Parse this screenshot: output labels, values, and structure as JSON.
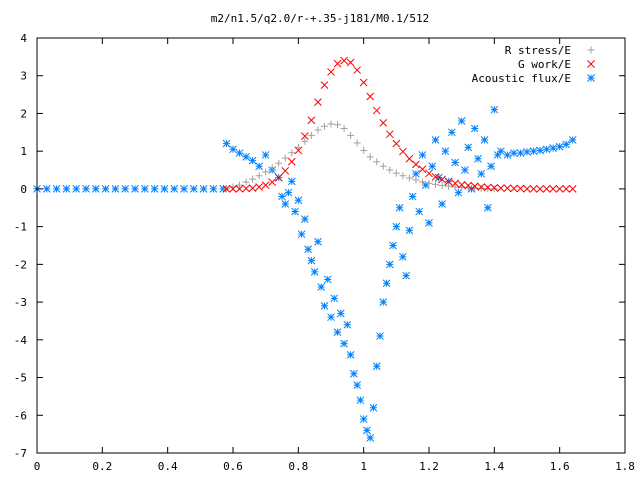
{
  "chart_data": {
    "type": "scatter",
    "title": "m2/n1.5/q2.0/r-+.35-j181/M0.1/512",
    "xlabel": "",
    "ylabel": "",
    "xlim": [
      0,
      1.8
    ],
    "ylim": [
      -7,
      4
    ],
    "x_ticks": [
      0,
      0.2,
      0.4,
      0.6,
      0.8,
      1,
      1.2,
      1.4,
      1.6,
      1.8
    ],
    "x_tick_labels": [
      "0",
      "0.2",
      "0.4",
      "0.6",
      "0.8",
      "1",
      "1.2",
      "1.4",
      "1.6",
      "1.8"
    ],
    "y_ticks": [
      4,
      3,
      2,
      1,
      0,
      -1,
      -2,
      -3,
      -4,
      -5,
      -6,
      -7
    ],
    "y_tick_labels": [
      "4",
      "3",
      "2",
      "1",
      "0",
      "-1",
      "-2",
      "-3",
      "-4",
      "-5",
      "-6",
      "-7"
    ],
    "grid": false,
    "legend_position": "top-right",
    "series": [
      {
        "name": "R stress/E",
        "marker": "plus",
        "color": "#a0a0a0",
        "points": [
          [
            0.58,
            0.0
          ],
          [
            0.6,
            0.05
          ],
          [
            0.62,
            0.1
          ],
          [
            0.64,
            0.18
          ],
          [
            0.66,
            0.26
          ],
          [
            0.68,
            0.35
          ],
          [
            0.7,
            0.45
          ],
          [
            0.72,
            0.56
          ],
          [
            0.74,
            0.68
          ],
          [
            0.76,
            0.82
          ],
          [
            0.78,
            0.96
          ],
          [
            0.8,
            1.1
          ],
          [
            0.82,
            1.26
          ],
          [
            0.84,
            1.42
          ],
          [
            0.86,
            1.56
          ],
          [
            0.88,
            1.66
          ],
          [
            0.9,
            1.72
          ],
          [
            0.92,
            1.7
          ],
          [
            0.94,
            1.6
          ],
          [
            0.96,
            1.42
          ],
          [
            0.98,
            1.22
          ],
          [
            1.0,
            1.02
          ],
          [
            1.02,
            0.85
          ],
          [
            1.04,
            0.72
          ],
          [
            1.06,
            0.6
          ],
          [
            1.08,
            0.5
          ],
          [
            1.1,
            0.42
          ],
          [
            1.12,
            0.35
          ],
          [
            1.14,
            0.29
          ],
          [
            1.16,
            0.24
          ],
          [
            1.18,
            0.19
          ],
          [
            1.2,
            0.15
          ],
          [
            1.22,
            0.12
          ],
          [
            1.24,
            0.09
          ],
          [
            1.26,
            0.07
          ],
          [
            1.28,
            0.05
          ],
          [
            1.3,
            0.04
          ],
          [
            1.32,
            0.03
          ],
          [
            1.34,
            0.02
          ],
          [
            1.36,
            0.01
          ],
          [
            1.38,
            0.0
          ],
          [
            1.4,
            0.0
          ]
        ]
      },
      {
        "name": "G work/E",
        "marker": "cross",
        "color": "#ff0000",
        "points": [
          [
            0.58,
            0.0
          ],
          [
            0.6,
            0.0
          ],
          [
            0.62,
            0.0
          ],
          [
            0.64,
            0.01
          ],
          [
            0.66,
            0.02
          ],
          [
            0.68,
            0.05
          ],
          [
            0.7,
            0.1
          ],
          [
            0.72,
            0.18
          ],
          [
            0.74,
            0.3
          ],
          [
            0.76,
            0.48
          ],
          [
            0.78,
            0.72
          ],
          [
            0.8,
            1.02
          ],
          [
            0.82,
            1.4
          ],
          [
            0.84,
            1.82
          ],
          [
            0.86,
            2.3
          ],
          [
            0.88,
            2.75
          ],
          [
            0.9,
            3.1
          ],
          [
            0.92,
            3.32
          ],
          [
            0.94,
            3.4
          ],
          [
            0.96,
            3.35
          ],
          [
            0.98,
            3.15
          ],
          [
            1.0,
            2.82
          ],
          [
            1.02,
            2.45
          ],
          [
            1.04,
            2.08
          ],
          [
            1.06,
            1.75
          ],
          [
            1.08,
            1.45
          ],
          [
            1.1,
            1.2
          ],
          [
            1.12,
            0.99
          ],
          [
            1.14,
            0.8
          ],
          [
            1.16,
            0.65
          ],
          [
            1.18,
            0.52
          ],
          [
            1.2,
            0.41
          ],
          [
            1.22,
            0.32
          ],
          [
            1.24,
            0.25
          ],
          [
            1.26,
            0.19
          ],
          [
            1.28,
            0.15
          ],
          [
            1.3,
            0.11
          ],
          [
            1.32,
            0.09
          ],
          [
            1.34,
            0.07
          ],
          [
            1.36,
            0.05
          ],
          [
            1.38,
            0.04
          ],
          [
            1.4,
            0.03
          ],
          [
            1.42,
            0.02
          ],
          [
            1.44,
            0.02
          ],
          [
            1.46,
            0.01
          ],
          [
            1.48,
            0.01
          ],
          [
            1.5,
            0.0
          ],
          [
            1.52,
            0.0
          ],
          [
            1.54,
            0.0
          ],
          [
            1.56,
            0.0
          ],
          [
            1.58,
            0.0
          ],
          [
            1.6,
            0.0
          ],
          [
            1.62,
            0.0
          ],
          [
            1.64,
            0.0
          ]
        ]
      },
      {
        "name": "Acoustic flux/E",
        "marker": "star",
        "color": "#0080ff",
        "points": [
          [
            0.0,
            0.0
          ],
          [
            0.03,
            0.0
          ],
          [
            0.06,
            0.0
          ],
          [
            0.09,
            0.0
          ],
          [
            0.12,
            0.0
          ],
          [
            0.15,
            0.0
          ],
          [
            0.18,
            0.0
          ],
          [
            0.21,
            0.0
          ],
          [
            0.24,
            0.0
          ],
          [
            0.27,
            0.0
          ],
          [
            0.3,
            0.0
          ],
          [
            0.33,
            0.0
          ],
          [
            0.36,
            0.0
          ],
          [
            0.39,
            0.0
          ],
          [
            0.42,
            0.0
          ],
          [
            0.45,
            0.0
          ],
          [
            0.48,
            0.0
          ],
          [
            0.51,
            0.0
          ],
          [
            0.54,
            0.0
          ],
          [
            0.57,
            0.0
          ],
          [
            0.58,
            1.2
          ],
          [
            0.6,
            1.05
          ],
          [
            0.62,
            0.95
          ],
          [
            0.64,
            0.85
          ],
          [
            0.66,
            0.75
          ],
          [
            0.68,
            0.6
          ],
          [
            0.7,
            0.9
          ],
          [
            0.72,
            0.5
          ],
          [
            0.74,
            0.3
          ],
          [
            0.75,
            -0.2
          ],
          [
            0.76,
            -0.4
          ],
          [
            0.77,
            -0.1
          ],
          [
            0.78,
            0.2
          ],
          [
            0.79,
            -0.6
          ],
          [
            0.8,
            -0.3
          ],
          [
            0.81,
            -1.2
          ],
          [
            0.82,
            -0.8
          ],
          [
            0.83,
            -1.6
          ],
          [
            0.84,
            -1.9
          ],
          [
            0.85,
            -2.2
          ],
          [
            0.86,
            -1.4
          ],
          [
            0.87,
            -2.6
          ],
          [
            0.88,
            -3.1
          ],
          [
            0.89,
            -2.4
          ],
          [
            0.9,
            -3.4
          ],
          [
            0.91,
            -2.9
          ],
          [
            0.92,
            -3.8
          ],
          [
            0.93,
            -3.3
          ],
          [
            0.94,
            -4.1
          ],
          [
            0.95,
            -3.6
          ],
          [
            0.96,
            -4.4
          ],
          [
            0.97,
            -4.9
          ],
          [
            0.98,
            -5.2
          ],
          [
            0.99,
            -5.6
          ],
          [
            1.0,
            -6.1
          ],
          [
            1.01,
            -6.4
          ],
          [
            1.02,
            -6.6
          ],
          [
            1.03,
            -5.8
          ],
          [
            1.04,
            -4.7
          ],
          [
            1.05,
            -3.9
          ],
          [
            1.06,
            -3.0
          ],
          [
            1.07,
            -2.5
          ],
          [
            1.08,
            -2.0
          ],
          [
            1.09,
            -1.5
          ],
          [
            1.1,
            -1.0
          ],
          [
            1.11,
            -0.5
          ],
          [
            1.12,
            -1.8
          ],
          [
            1.13,
            -2.3
          ],
          [
            1.14,
            -1.1
          ],
          [
            1.15,
            -0.2
          ],
          [
            1.16,
            0.4
          ],
          [
            1.17,
            -0.6
          ],
          [
            1.18,
            0.9
          ],
          [
            1.19,
            0.1
          ],
          [
            1.2,
            -0.9
          ],
          [
            1.21,
            0.6
          ],
          [
            1.22,
            1.3
          ],
          [
            1.23,
            0.3
          ],
          [
            1.24,
            -0.4
          ],
          [
            1.25,
            1.0
          ],
          [
            1.26,
            0.2
          ],
          [
            1.27,
            1.5
          ],
          [
            1.28,
            0.7
          ],
          [
            1.29,
            -0.1
          ],
          [
            1.3,
            1.8
          ],
          [
            1.31,
            0.5
          ],
          [
            1.32,
            1.1
          ],
          [
            1.33,
            0.0
          ],
          [
            1.34,
            1.6
          ],
          [
            1.35,
            0.8
          ],
          [
            1.36,
            0.4
          ],
          [
            1.37,
            1.3
          ],
          [
            1.38,
            -0.5
          ],
          [
            1.39,
            0.6
          ],
          [
            1.4,
            2.1
          ],
          [
            1.41,
            0.9
          ],
          [
            1.42,
            1.0
          ],
          [
            1.44,
            0.9
          ],
          [
            1.46,
            0.95
          ],
          [
            1.48,
            0.95
          ],
          [
            1.5,
            0.98
          ],
          [
            1.52,
            1.0
          ],
          [
            1.54,
            1.02
          ],
          [
            1.56,
            1.05
          ],
          [
            1.58,
            1.08
          ],
          [
            1.6,
            1.12
          ],
          [
            1.62,
            1.18
          ],
          [
            1.64,
            1.3
          ]
        ]
      }
    ]
  }
}
